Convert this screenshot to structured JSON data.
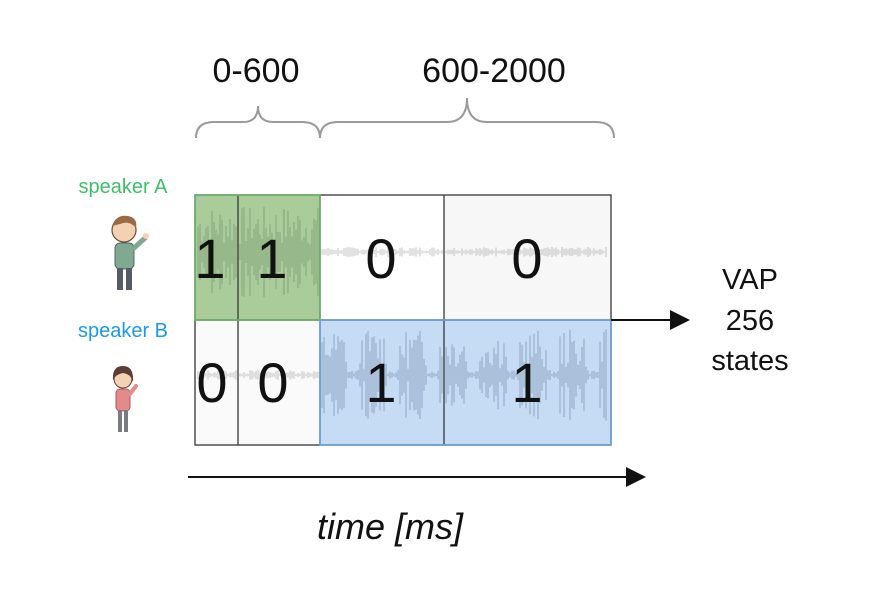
{
  "ranges": {
    "short": "0-600",
    "long": "600-2000"
  },
  "speakers": {
    "a": {
      "label": "speaker A",
      "color": "#3cc06a"
    },
    "b": {
      "label": "speaker B",
      "color": "#1a9be6"
    }
  },
  "bins": {
    "a": [
      "1",
      "1",
      "0",
      "0"
    ],
    "b": [
      "0",
      "0",
      "1",
      "1"
    ]
  },
  "output": {
    "line1": "VAP",
    "line2": "256",
    "line3": "states"
  },
  "time_label": "time [ms]",
  "colors": {
    "active_a_fill": "#a9cc9a",
    "active_b_fill": "#c6dcf5",
    "cell_border": "#444444"
  }
}
